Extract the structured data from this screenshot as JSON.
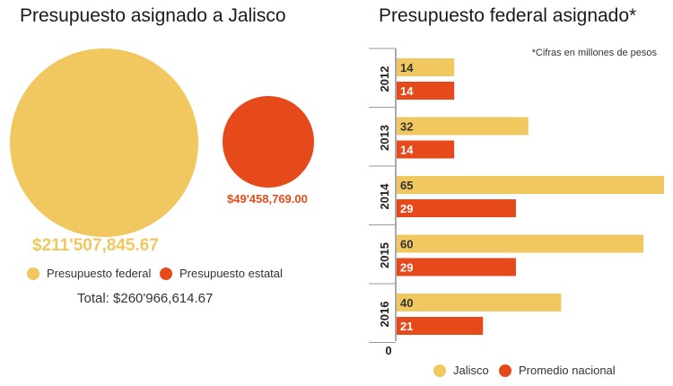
{
  "left_panel": {
    "title": "Presupuesto asignado a Jalisco",
    "federal_value": "$211'507,845.67",
    "estatal_value": "$49'458,769.00",
    "legend": [
      {
        "label": "Presupuesto federal",
        "color": "#f0c85f"
      },
      {
        "label": "Presupuesto estatal",
        "color": "#e64a1b"
      }
    ],
    "total": "Total: $260'966,614.67"
  },
  "right_panel": {
    "title": "Presupuesto federal asignado*",
    "note": "*Cifras en millones de pesos",
    "legend": [
      {
        "label": "Jalisco",
        "color": "#f0c85f"
      },
      {
        "label": "Promedio nacional",
        "color": "#e64a1b"
      }
    ]
  },
  "chart_data": [
    {
      "type": "pie",
      "title": "Presupuesto asignado a Jalisco",
      "labels": [
        "Presupuesto federal",
        "Presupuesto estatal"
      ],
      "values": [
        211507845.67,
        49458769.0
      ],
      "colors": [
        "#f0c85f",
        "#e64a1b"
      ],
      "total": 260966614.67
    },
    {
      "type": "bar",
      "orientation": "horizontal",
      "title": "Presupuesto federal asignado*",
      "categories": [
        "2012",
        "2013",
        "2014",
        "2015",
        "2016"
      ],
      "series": [
        {
          "name": "Jalisco",
          "color": "#f0c85f",
          "values": [
            14,
            32,
            65,
            60,
            40
          ]
        },
        {
          "name": "Promedio nacional",
          "color": "#e64a1b",
          "values": [
            14,
            14,
            29,
            29,
            21
          ]
        }
      ],
      "xlim": [
        0,
        65
      ],
      "grid": false,
      "legend_position": "bottom"
    }
  ]
}
